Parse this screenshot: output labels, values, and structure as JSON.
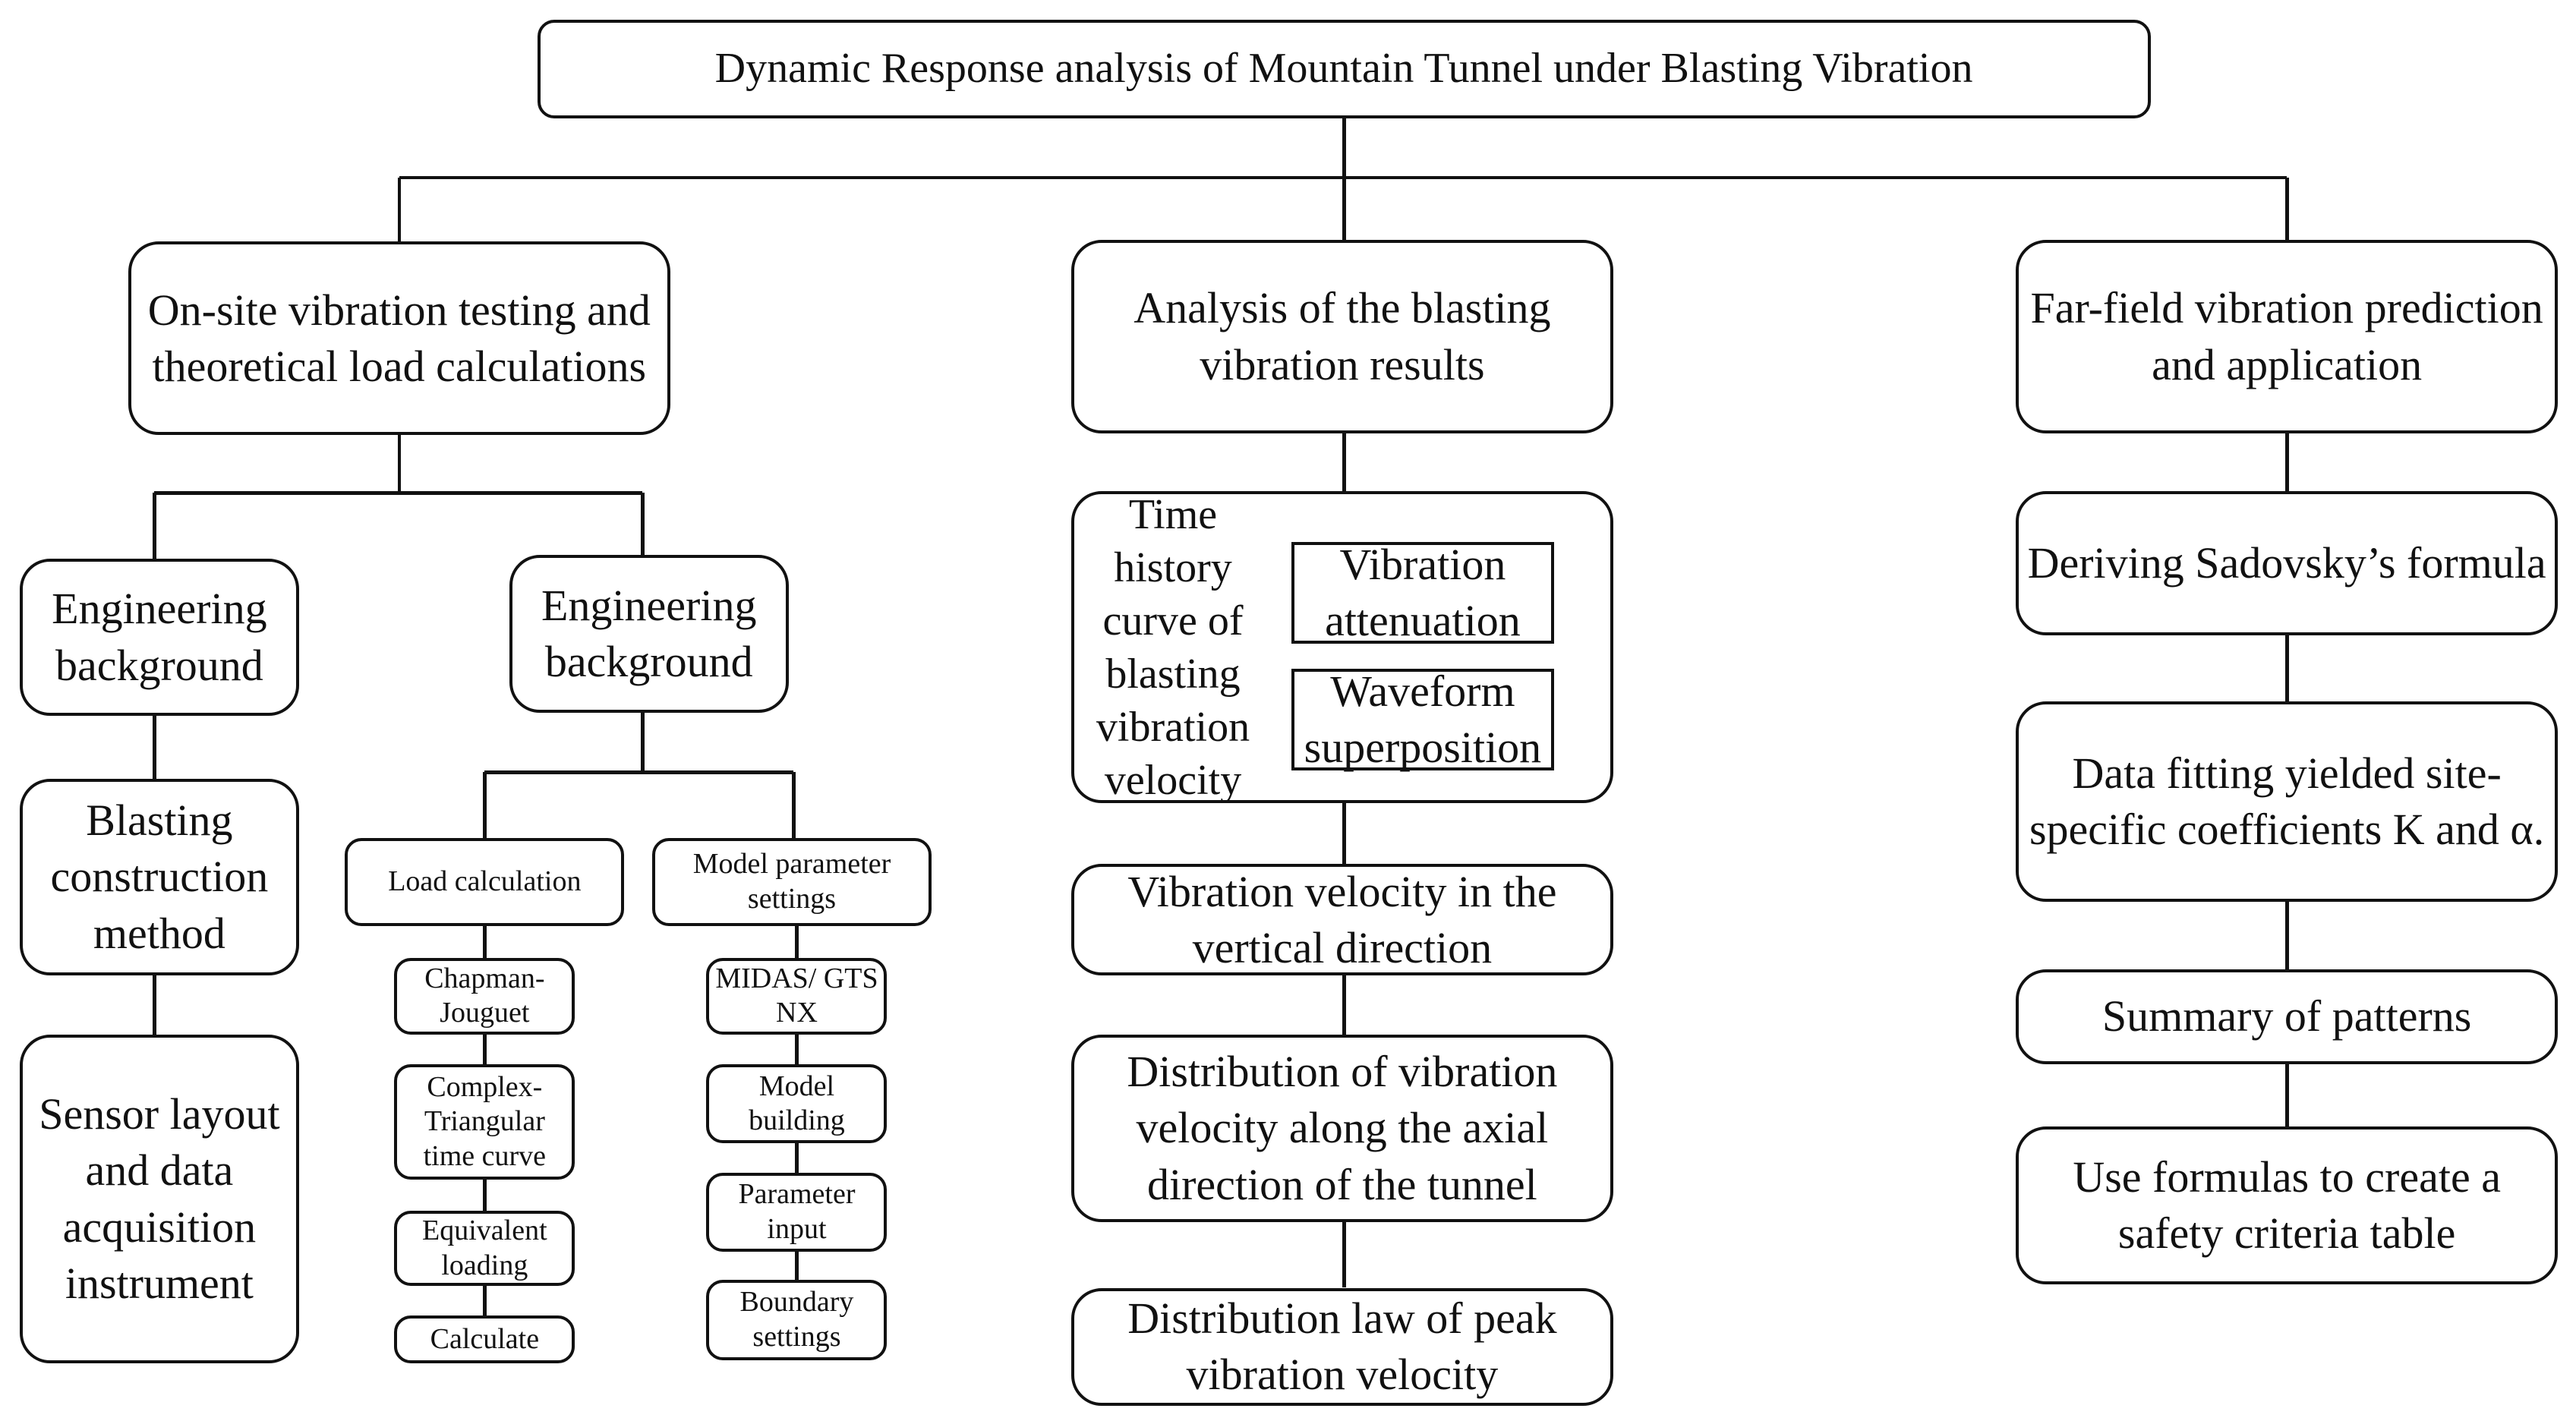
{
  "title": "Dynamic Response analysis of Mountain Tunnel under Blasting Vibration",
  "branches": {
    "left": {
      "header": "On-site vibration testing and theoretical load calculations",
      "col1": [
        "Engineering background",
        "Blasting construction method",
        "Sensor layout and data acquisition instrument"
      ],
      "col2_header": "Engineering background",
      "load": {
        "header": "Load calculation",
        "steps": [
          "Chapman-Jouguet",
          "Complex-Triangular time curve",
          "Equivalent loading",
          "Calculate"
        ]
      },
      "model": {
        "header": "Model parameter settings",
        "steps": [
          "MIDAS/ GTS NX",
          "Model building",
          "Parameter input",
          "Boundary settings"
        ]
      }
    },
    "center": {
      "header": "Analysis of the blasting vibration results",
      "time_history": "Time history curve of blasting vibration velocity",
      "sub_boxes": [
        "Vibration attenuation",
        "Waveform superposition"
      ],
      "steps": [
        "Vibration velocity in the vertical direction",
        "Distribution of vibration velocity along the axial direction of the tunnel",
        "Distribution law of peak vibration velocity"
      ]
    },
    "right": {
      "header": "Far-field vibration prediction and application",
      "steps": [
        "Deriving Sadovsky’s formula",
        "Data fitting yielded site-specific coefficients K and α.",
        "Summary of patterns",
        "Use formulas to create a safety criteria table"
      ]
    }
  }
}
